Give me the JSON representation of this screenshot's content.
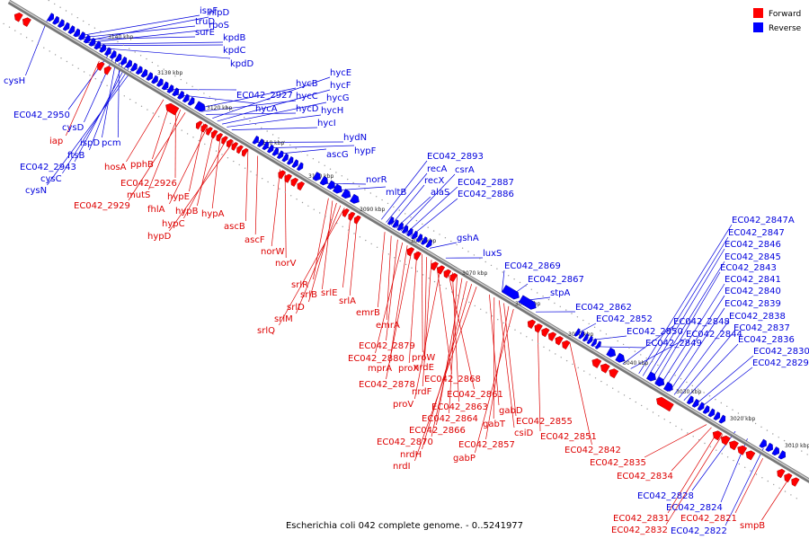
{
  "legend": {
    "forward": "Forward",
    "reverse": "Reverse",
    "forward_color": "#ff0000",
    "reverse_color": "#0000ff"
  },
  "caption": "Escherichia coli 042 complete genome. - 0..5241977",
  "kbp_ticks": [
    "3140 kbp",
    "3130 kbp",
    "3120 kbp",
    "3110 kbp",
    "3100 kbp",
    "3090 kbp",
    "3080 kbp",
    "3070 kbp",
    "3060 kbp",
    "3050 kbp",
    "3040 kbp",
    "3030 kbp",
    "3020 kbp",
    "3010 kbp"
  ],
  "reverse_labels": [
    "ispF",
    "truD",
    "surE",
    "nlpD",
    "rpoS",
    "kpdB",
    "kpdC",
    "kpdD",
    "cysH",
    "EC042_2950",
    "cysD",
    "ispD",
    "pcm",
    "ftsB",
    "EC042_2943",
    "cysC",
    "cysN",
    "EC042_2927",
    "hycA",
    "hycB",
    "hycC",
    "hycD",
    "hycE",
    "hycF",
    "hycG",
    "hycH",
    "hycI",
    "hydN",
    "hypF",
    "ascG",
    "norR",
    "mltB",
    "EC042_2893",
    "recA",
    "recX",
    "alaS",
    "csrA",
    "EC042_2887",
    "EC042_2886",
    "gshA",
    "luxS",
    "EC042_2869",
    "EC042_2867",
    "stpA",
    "EC042_2862",
    "EC042_2852",
    "EC042_2850",
    "EC042_2849",
    "EC042_2848",
    "EC042_2844",
    "EC042_2847A",
    "EC042_2847",
    "EC042_2846",
    "EC042_2845",
    "EC042_2843",
    "EC042_2841",
    "EC042_2840",
    "EC042_2839",
    "EC042_2838",
    "EC042_2837",
    "EC042_2836",
    "EC042_2830",
    "EC042_2829",
    "EC042_2828",
    "EC042_2824",
    "EC042_2822"
  ],
  "forward_labels": [
    "iap",
    "hosA",
    "pphB",
    "EC042_2926",
    "mutS",
    "EC042_2929",
    "hypE",
    "fhlA",
    "hypB",
    "hypA",
    "hypC",
    "hypD",
    "ascB",
    "ascF",
    "norW",
    "norV",
    "srlR",
    "srlB",
    "srlD",
    "srlM",
    "srlQ",
    "srlE",
    "srlA",
    "emrB",
    "emrA",
    "EC042_2879",
    "EC042_2880",
    "mprA",
    "EC042_2878",
    "proX",
    "proW",
    "nrdE",
    "nrdF",
    "EC042_2868",
    "proV",
    "EC042_2861",
    "EC042_2863",
    "EC042_2864",
    "EC042_2866",
    "EC042_2870",
    "nrdH",
    "nrdI",
    "gabD",
    "gabT",
    "csiD",
    "EC042_2855",
    "EC042_2857",
    "gabP",
    "EC042_2851",
    "EC042_2842",
    "EC042_2835",
    "EC042_2834",
    "EC042_2831",
    "EC042_2832",
    "EC042_2821",
    "smpB"
  ]
}
